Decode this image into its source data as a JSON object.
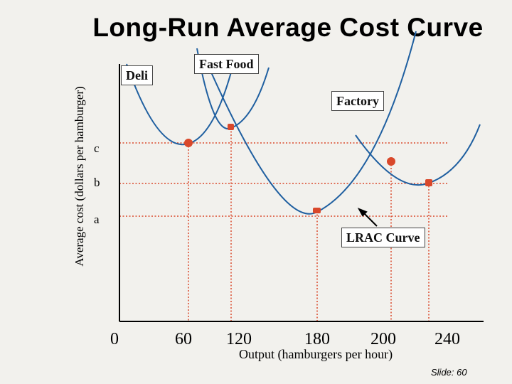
{
  "slide": {
    "title": "Long-Run Average Cost Curve",
    "number_label": "Slide:  60"
  },
  "axes": {
    "y_label": "Average cost (dollars per hamburger)",
    "x_label": "Output (hamburgers per hour)",
    "x_ticks": [
      "0",
      "60",
      "120",
      "180",
      "200",
      "240"
    ],
    "cost_levels": [
      "c",
      "b",
      "a"
    ]
  },
  "curves": {
    "deli": "Deli",
    "fast_food": "Fast Food",
    "factory": "Factory",
    "lrac": "LRAC Curve"
  },
  "colors": {
    "curve": "#1f5fa0",
    "guide": "#d9482b",
    "marker": "#d9482b",
    "background": "#f2f1ed"
  }
}
